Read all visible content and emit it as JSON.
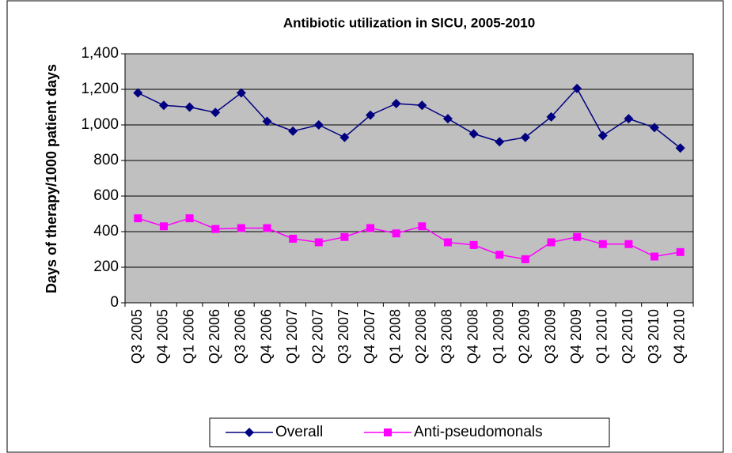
{
  "chart_data": {
    "type": "line",
    "title": "Antibiotic utilization in SICU, 2005-2010",
    "y_label": "Days of therapy/1000 patient days",
    "categories": [
      "Q3 2005",
      "Q4 2005",
      "Q1 2006",
      "Q2 2006",
      "Q3 2006",
      "Q4 2006",
      "Q1 2007",
      "Q2 2007",
      "Q3 2007",
      "Q4 2007",
      "Q1 2008",
      "Q2 2008",
      "Q3 2008",
      "Q4 2008",
      "Q1 2009",
      "Q2 2009",
      "Q3 2009",
      "Q4 2009",
      "Q1 2010",
      "Q2 2010",
      "Q3 2010",
      "Q4 2010"
    ],
    "series": [
      {
        "name": "Overall",
        "color": "#000080",
        "marker": "diamond",
        "values": [
          1180,
          1110,
          1100,
          1070,
          1180,
          1020,
          965,
          1000,
          930,
          1055,
          1120,
          1110,
          1035,
          950,
          905,
          930,
          1045,
          1205,
          940,
          1035,
          985,
          870
        ]
      },
      {
        "name": "Anti-pseudomonals",
        "color": "#ff00ff",
        "marker": "square",
        "values": [
          475,
          430,
          475,
          415,
          420,
          420,
          360,
          340,
          370,
          420,
          390,
          430,
          340,
          325,
          270,
          245,
          340,
          370,
          330,
          330,
          260,
          285
        ]
      }
    ],
    "ylim": [
      0,
      1400
    ],
    "yticks": [
      0,
      200,
      400,
      600,
      800,
      {
        "value": 1000,
        "label": "1,000"
      },
      {
        "value": 1200,
        "label": "1,200"
      },
      {
        "value": 1400,
        "label": "1,400"
      }
    ],
    "grid": true,
    "legend": "bottom"
  }
}
